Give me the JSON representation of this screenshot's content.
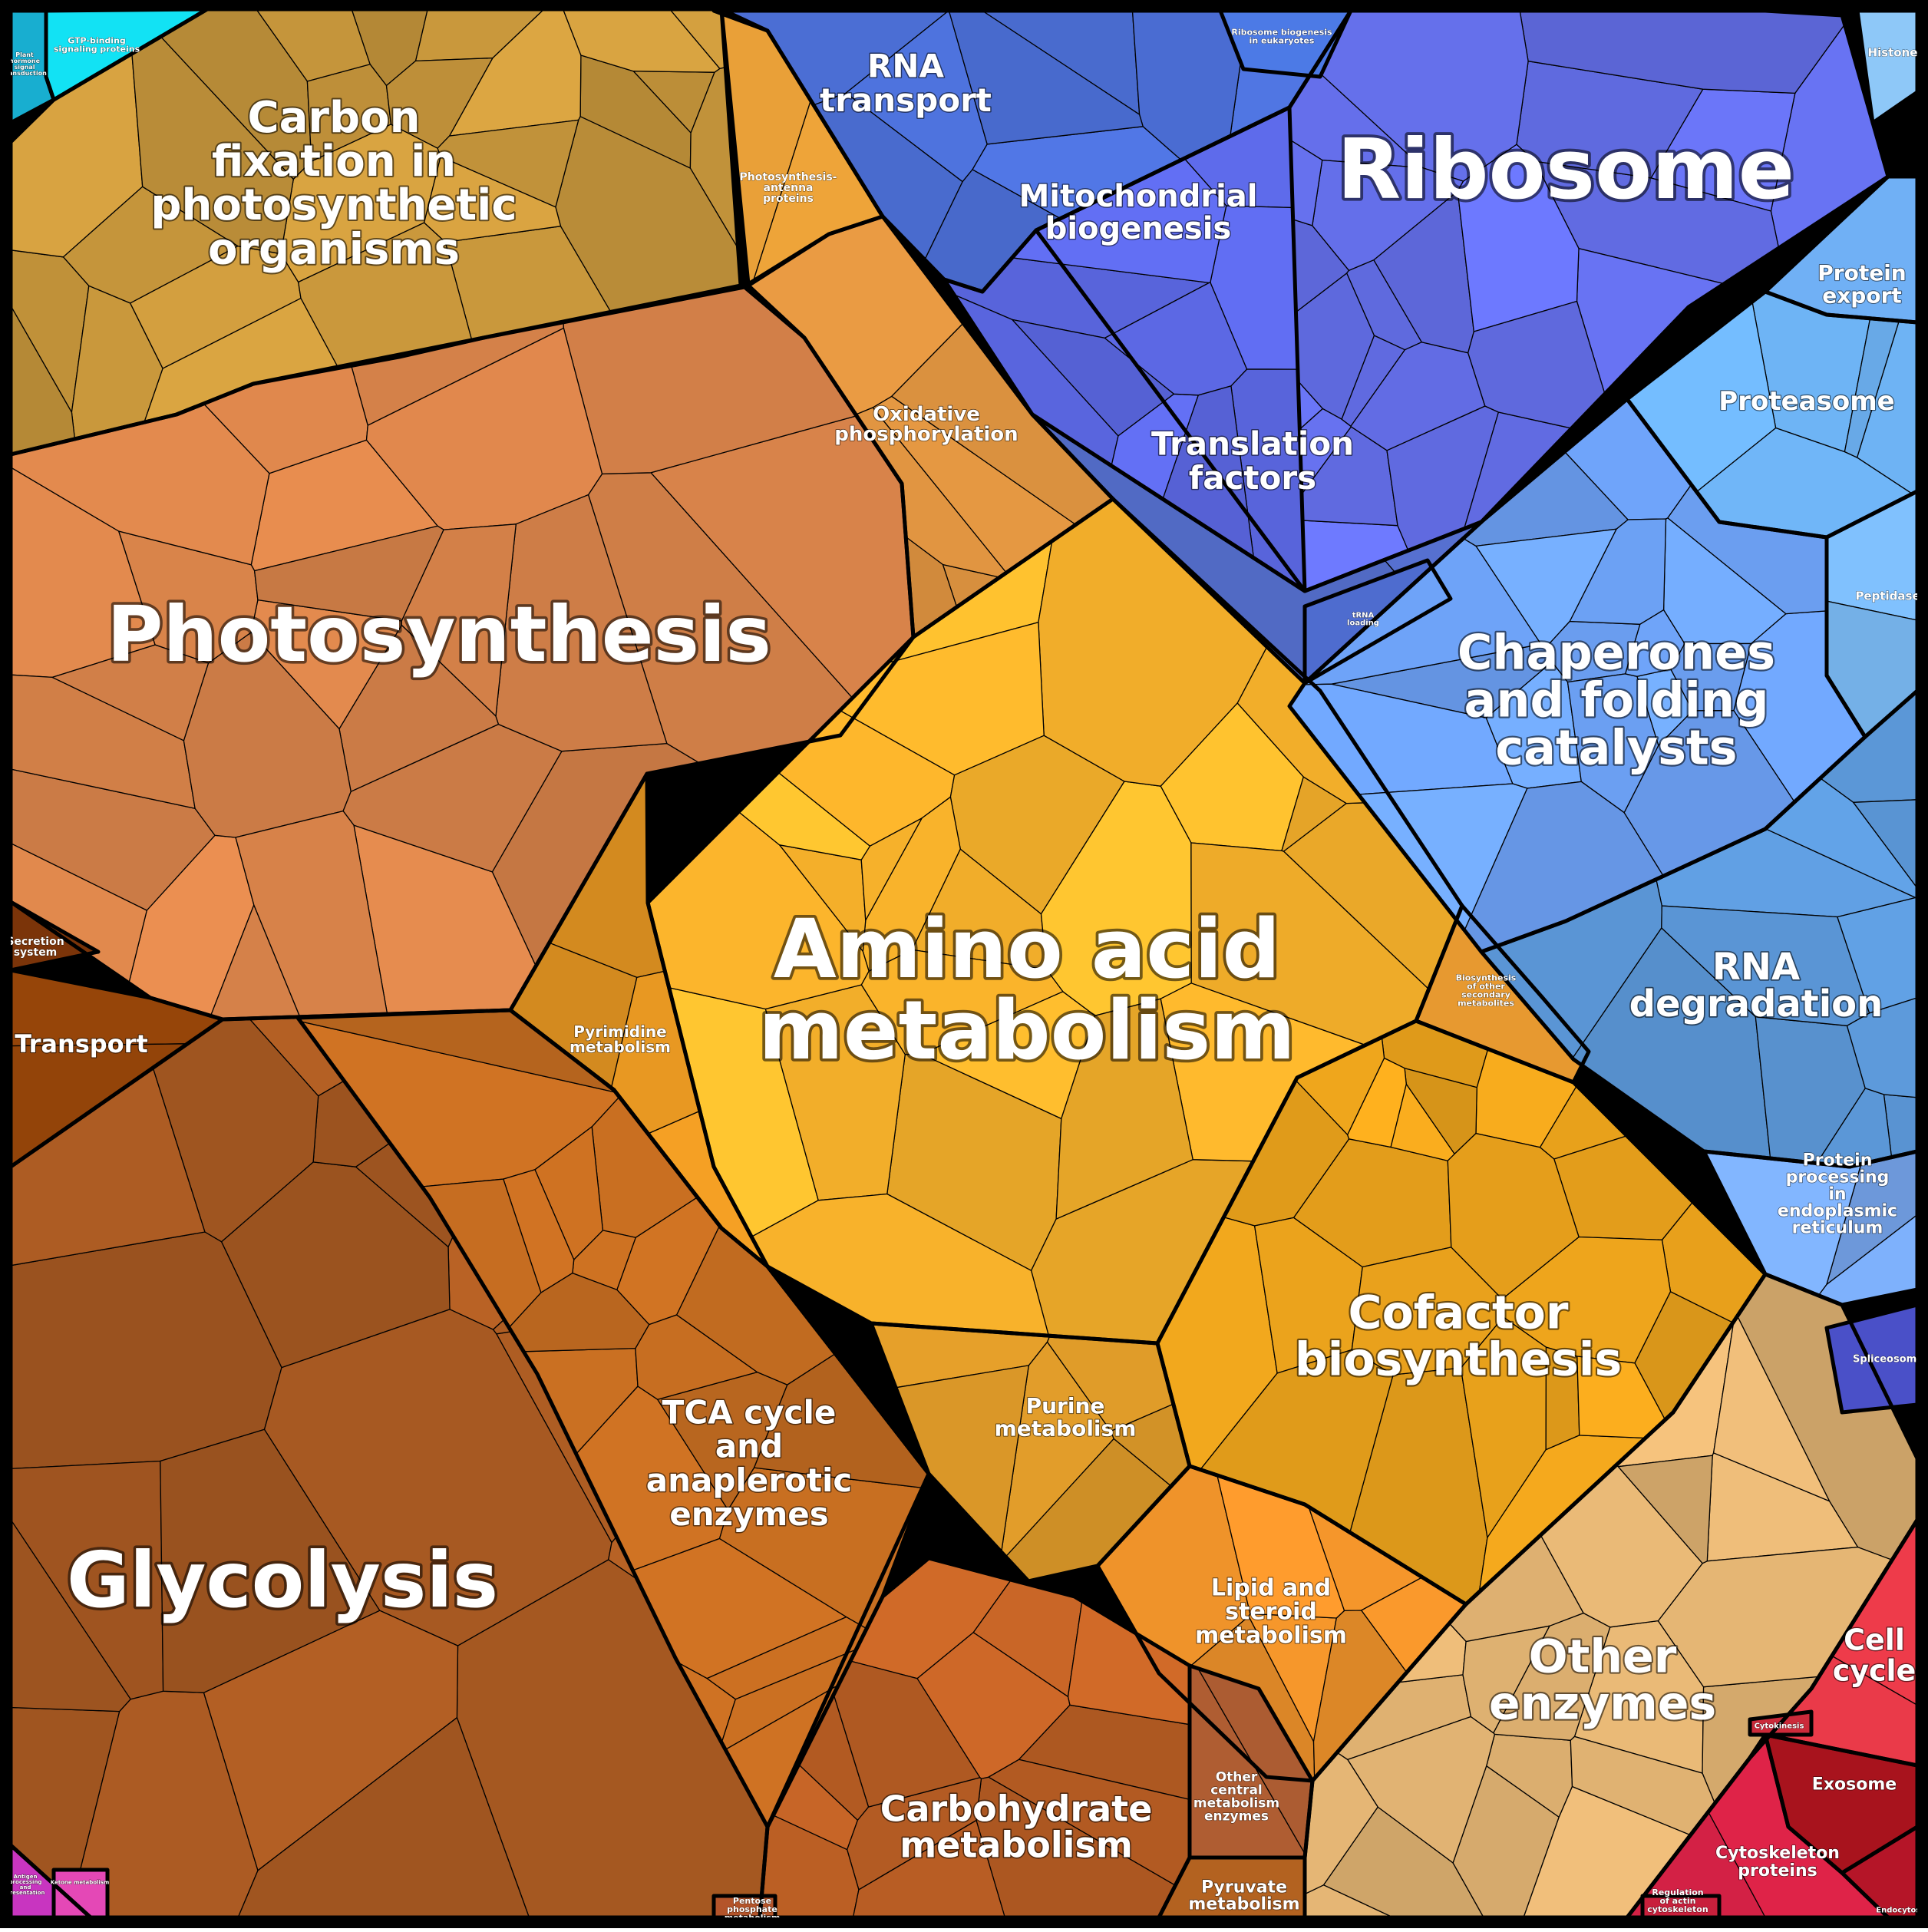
{
  "groups": [
    {
      "id": "photosynthesis",
      "label": [
        "Photosynthesis"
      ],
      "color": "#d8834a"
    },
    {
      "id": "carbon-fixation",
      "label": [
        "Carbon",
        "fixation in",
        "photosynthetic",
        "organisms"
      ],
      "color": "#c8973c"
    },
    {
      "id": "photosynthesis-antenna-proteins",
      "label": [
        "Photosynthesis-",
        "antenna",
        "proteins"
      ],
      "color": "#f3a73a"
    },
    {
      "id": "oxidative-phosphorylation",
      "label": [
        "Oxidative",
        "phosphorylation"
      ],
      "color": "#db913f"
    },
    {
      "id": "amino-acid-metabolism",
      "label": [
        "Amino acid",
        "metabolism"
      ],
      "color": "#fdb62c"
    },
    {
      "id": "pyrimidine-metabolism",
      "label": [
        "Pyrimidine",
        "metabolism"
      ],
      "color": "#df9221"
    },
    {
      "id": "purine-metabolism",
      "label": [
        "Purine",
        "metabolism"
      ],
      "color": "#df9b29"
    },
    {
      "id": "cofactor-biosynthesis",
      "label": [
        "Cofactor",
        "biosynthesis"
      ],
      "color": "#eda41c"
    },
    {
      "id": "biosynthesis-other-secondary",
      "label": [
        "Biosynthesis",
        "of other",
        "secondary",
        "metabolites"
      ],
      "color": "#e79930"
    },
    {
      "id": "lipid-steroid-metabolism",
      "label": [
        "Lipid and",
        "steroid",
        "metabolism"
      ],
      "color": "#ee922a"
    },
    {
      "id": "glycolysis",
      "label": [
        "Glycolysis"
      ],
      "color": "#a95a22"
    },
    {
      "id": "tca-cycle",
      "label": [
        "TCA cycle",
        "and",
        "anaplerotic",
        "enzymes"
      ],
      "color": "#c06a20"
    },
    {
      "id": "carbohydrate-metabolism",
      "label": [
        "Carbohydrate",
        "metabolism"
      ],
      "color": "#bf6125"
    },
    {
      "id": "other-central-metabolism",
      "label": [
        "Other",
        "central",
        "metabolism",
        "enzymes"
      ],
      "color": "#a75930"
    },
    {
      "id": "pyruvate-metabolism",
      "label": [
        "Pyruvate",
        "metabolism"
      ],
      "color": "#b36220"
    },
    {
      "id": "pentose-phosphate-metabolism",
      "label": [
        "Pentose",
        "phosphate",
        "metabolism"
      ],
      "color": "#b4542a"
    },
    {
      "id": "transport",
      "label": [
        "Transport"
      ],
      "color": "#914309"
    },
    {
      "id": "secretion-system",
      "label": [
        "Secretion",
        "system"
      ],
      "color": "#7b3409"
    },
    {
      "id": "other-enzymes",
      "label": [
        "Other",
        "enzymes"
      ],
      "color": "#e0b272"
    },
    {
      "id": "ribosome",
      "label": [
        "Ribosome"
      ],
      "color": "#6570ec"
    },
    {
      "id": "rna-transport",
      "label": [
        "RNA",
        "transport"
      ],
      "color": "#4f74e0"
    },
    {
      "id": "mitochondrial-biogenesis",
      "label": [
        "Mitochondrial",
        "biogenesis"
      ],
      "color": "#5a66e0"
    },
    {
      "id": "ribosome-biogenesis-eukaryotes",
      "label": [
        "Ribosome biogenesis",
        "in eukaryotes"
      ],
      "color": "#4c7ae6"
    },
    {
      "id": "translation-factors",
      "label": [
        "Translation",
        "factors"
      ],
      "color": "#5872d4"
    },
    {
      "id": "trna-loading",
      "label": [
        "tRNA",
        "loading"
      ],
      "color": "#4e6ccf"
    },
    {
      "id": "histone",
      "label": [
        "Histone"
      ],
      "color": "#8ec8f8"
    },
    {
      "id": "protein-export",
      "label": [
        "Protein",
        "export"
      ],
      "color": "#70b0f5"
    },
    {
      "id": "proteasome",
      "label": [
        "Proteasome"
      ],
      "color": "#6cb0f0"
    },
    {
      "id": "peptidases",
      "label": [
        "Peptidases"
      ],
      "color": "#7fc0fc"
    },
    {
      "id": "chaperones",
      "label": [
        "Chaperones",
        "and folding",
        "catalysts"
      ],
      "color": "#6ea3f8"
    },
    {
      "id": "rna-degradation",
      "label": [
        "RNA",
        "degradation"
      ],
      "color": "#5f9de0"
    },
    {
      "id": "protein-processing-er",
      "label": [
        "Protein",
        "processing",
        "in",
        "endoplasmic",
        "reticulum"
      ],
      "color": "#78a8f0"
    },
    {
      "id": "spliceosome",
      "label": [
        "Spliceosome"
      ],
      "color": "#4a50c8"
    },
    {
      "id": "cell-cycle",
      "label": [
        "Cell",
        "cycle"
      ],
      "color": "#e23846"
    },
    {
      "id": "cytokinesis",
      "label": [
        "Cytokinesis"
      ],
      "color": "#cc2a3a"
    },
    {
      "id": "exosome",
      "label": [
        "Exosome"
      ],
      "color": "#a8131d"
    },
    {
      "id": "cytoskeleton-proteins",
      "label": [
        "Cytoskeleton",
        "proteins"
      ],
      "color": "#e4244a"
    },
    {
      "id": "regulation-actin-cytoskeleton",
      "label": [
        "Regulation",
        "of actin",
        "cytoskeleton"
      ],
      "color": "#c8203c"
    },
    {
      "id": "endocytosis",
      "label": [
        "Endocytosis"
      ],
      "color": "#b51528"
    },
    {
      "id": "gtp-binding-signaling-proteins",
      "label": [
        "GTP-binding",
        "signaling proteins"
      ],
      "color": "#12e2f4"
    },
    {
      "id": "plant-hormone-signal-transduction",
      "label": [
        "Plant",
        "hormone",
        "signal",
        "transduction"
      ],
      "color": "#18aed0"
    },
    {
      "id": "antigen-processing",
      "label": [
        "Antigen",
        "processing",
        "and",
        "presentation"
      ],
      "color": "#c835c0"
    },
    {
      "id": "ketone-metabolism",
      "label": [
        "Ketone metabolism"
      ],
      "color": "#e448b6"
    }
  ]
}
